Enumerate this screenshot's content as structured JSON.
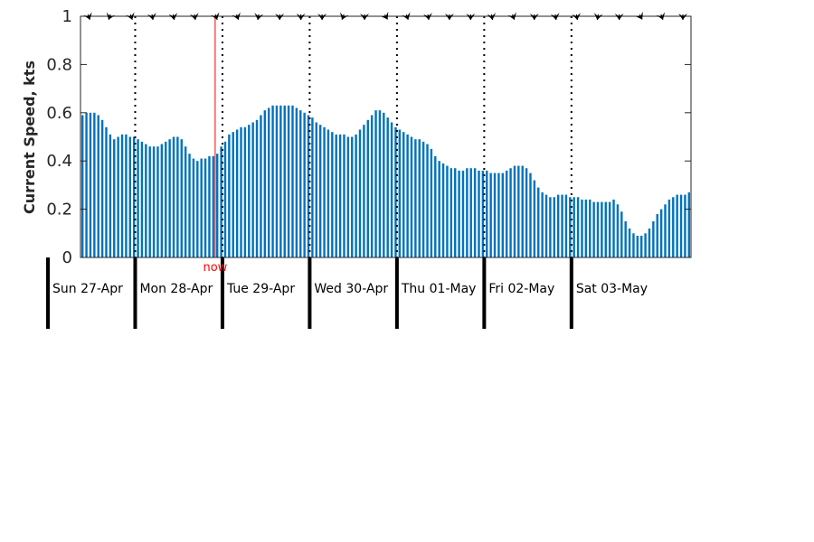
{
  "chart_data": {
    "type": "bar",
    "title": "",
    "xlabel": "",
    "ylabel": "Current Speed, kts",
    "ylim": [
      0,
      1
    ],
    "yticks": [
      "0",
      "0.2",
      "0.4",
      "0.6",
      "0.8",
      "1"
    ],
    "grid": false,
    "bar_color": "#0072bd",
    "now_color": "#ff0000",
    "now_label": "now",
    "x_start": "2025-04-27T00:00",
    "x_end": "2025-05-03T23:00",
    "now_time": "2025-04-28T22:00",
    "hour_step": 1,
    "days": [
      {
        "label": "Sun 27-Apr",
        "date": "2025-04-27"
      },
      {
        "label": "Mon 28-Apr",
        "date": "2025-04-28"
      },
      {
        "label": "Tue 29-Apr",
        "date": "2025-04-29"
      },
      {
        "label": "Wed 30-Apr",
        "date": "2025-04-30"
      },
      {
        "label": "Thu 01-May",
        "date": "2025-05-01"
      },
      {
        "label": "Fri 02-May",
        "date": "2025-05-02"
      },
      {
        "label": "Sat 03-May",
        "date": "2025-05-03"
      }
    ],
    "values": [
      0.59,
      0.6,
      0.6,
      0.6,
      0.59,
      0.57,
      0.54,
      0.51,
      0.49,
      0.5,
      0.51,
      0.51,
      0.5,
      0.5,
      0.49,
      0.48,
      0.47,
      0.46,
      0.46,
      0.46,
      0.47,
      0.48,
      0.49,
      0.5,
      0.5,
      0.49,
      0.46,
      0.43,
      0.41,
      0.4,
      0.41,
      0.41,
      0.42,
      0.42,
      0.43,
      0.46,
      0.48,
      0.51,
      0.52,
      0.53,
      0.54,
      0.54,
      0.55,
      0.56,
      0.57,
      0.59,
      0.61,
      0.62,
      0.63,
      0.63,
      0.63,
      0.63,
      0.63,
      0.63,
      0.62,
      0.61,
      0.6,
      0.59,
      0.58,
      0.56,
      0.55,
      0.54,
      0.53,
      0.52,
      0.51,
      0.51,
      0.51,
      0.5,
      0.5,
      0.51,
      0.53,
      0.55,
      0.57,
      0.59,
      0.61,
      0.61,
      0.6,
      0.58,
      0.56,
      0.54,
      0.53,
      0.52,
      0.51,
      0.5,
      0.49,
      0.49,
      0.48,
      0.47,
      0.45,
      0.42,
      0.4,
      0.39,
      0.38,
      0.37,
      0.37,
      0.36,
      0.36,
      0.37,
      0.37,
      0.37,
      0.36,
      0.36,
      0.36,
      0.35,
      0.35,
      0.35,
      0.35,
      0.36,
      0.37,
      0.38,
      0.38,
      0.38,
      0.37,
      0.35,
      0.32,
      0.29,
      0.27,
      0.26,
      0.25,
      0.25,
      0.26,
      0.26,
      0.26,
      0.25,
      0.25,
      0.25,
      0.24,
      0.24,
      0.24,
      0.23,
      0.23,
      0.23,
      0.23,
      0.23,
      0.24,
      0.22,
      0.19,
      0.15,
      0.12,
      0.1,
      0.09,
      0.09,
      0.1,
      0.12,
      0.15,
      0.18,
      0.2,
      0.22,
      0.24,
      0.25,
      0.26,
      0.26,
      0.26,
      0.27
    ],
    "direction_arrows_deg": [
      160,
      200,
      160,
      170,
      170,
      170,
      160,
      160,
      190,
      180,
      180,
      180,
      200,
      180,
      150,
      160,
      170,
      180,
      180,
      170,
      160,
      180,
      170,
      170,
      190,
      180,
      150,
      160,
      180
    ]
  }
}
